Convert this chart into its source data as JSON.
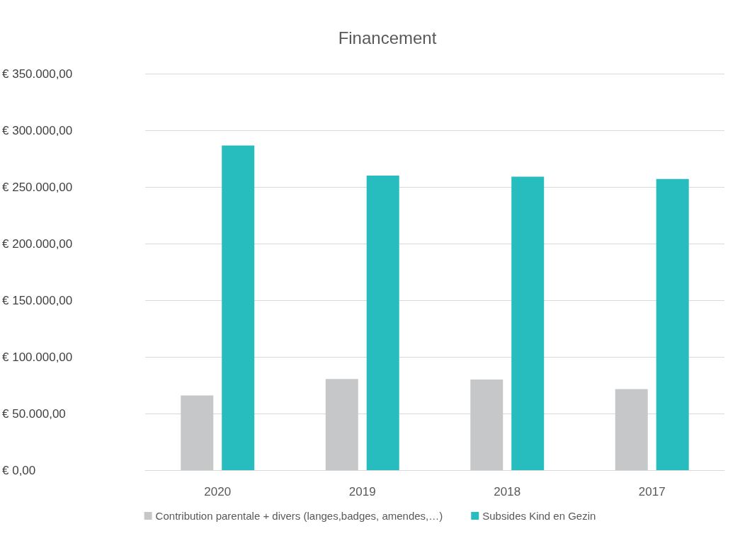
{
  "chart_data": {
    "type": "bar",
    "title": "Financement",
    "categories": [
      "2020",
      "2019",
      "2018",
      "2017"
    ],
    "series": [
      {
        "name": "Contribution parentale + divers (langes,badges, amendes,…)",
        "color": "#c6c7c9",
        "values": [
          66000,
          80500,
          80000,
          71500
        ]
      },
      {
        "name": "Subsides Kind en Gezin",
        "color": "#27bdbf",
        "values": [
          286500,
          260000,
          259000,
          257000
        ]
      }
    ],
    "ylim": [
      0,
      350000
    ],
    "yticks": [
      {
        "value": 0,
        "label": "€ 0,00"
      },
      {
        "value": 50000,
        "label": "€ 50.000,00"
      },
      {
        "value": 100000,
        "label": "€ 100.000,00"
      },
      {
        "value": 150000,
        "label": "€ 150.000,00"
      },
      {
        "value": 200000,
        "label": "€ 200.000,00"
      },
      {
        "value": 250000,
        "label": "€ 250.000,00"
      },
      {
        "value": 300000,
        "label": "€ 300.000,00"
      },
      {
        "value": 350000,
        "label": "€ 350.000,00"
      }
    ],
    "grid": "y",
    "legend": "bottom"
  }
}
